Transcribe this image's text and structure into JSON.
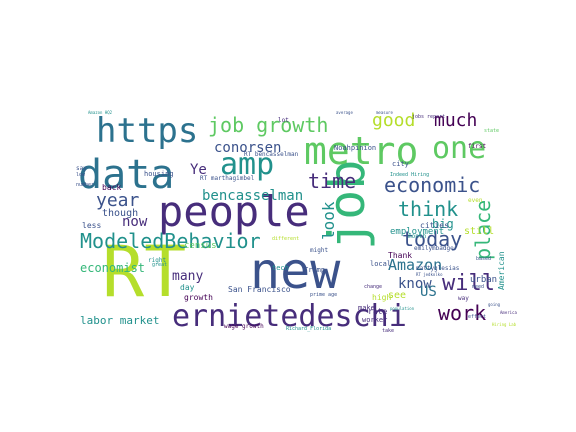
{
  "palette": [
    "#440154",
    "#3b528b",
    "#21918c",
    "#5ec962",
    "#fde725",
    "#2c728e",
    "#35b779",
    "#472d7b",
    "#b5de2b",
    "#26828e"
  ],
  "words": [
    {
      "text": "RT",
      "weight": 1.0,
      "color": "#b5de2b"
    },
    {
      "text": "new",
      "weight": 0.95,
      "color": "#3b528b"
    },
    {
      "text": "people",
      "weight": 0.86,
      "color": "#472d7b"
    },
    {
      "text": "job",
      "weight": 0.88,
      "color": "#35b779",
      "rotate": true
    },
    {
      "text": "data",
      "weight": 0.84,
      "color": "#2c728e"
    },
    {
      "text": "metro",
      "weight": 0.76,
      "color": "#5ec962"
    },
    {
      "text": "https",
      "weight": 0.7,
      "color": "#2c728e"
    },
    {
      "text": "ernietedeschi",
      "weight": 0.68,
      "color": "#472d7b"
    },
    {
      "text": "amp",
      "weight": 0.68,
      "color": "#21918c"
    },
    {
      "text": "one",
      "weight": 0.66,
      "color": "#5ec962"
    },
    {
      "text": "ModeledBehavior",
      "weight": 0.52,
      "color": "#21918c"
    },
    {
      "text": "job growth",
      "weight": 0.52,
      "color": "#5ec962"
    },
    {
      "text": "economic",
      "weight": 0.5,
      "color": "#3b528b"
    },
    {
      "text": "will",
      "weight": 0.5,
      "color": "#472d7b"
    },
    {
      "text": "today",
      "weight": 0.46,
      "color": "#3b528b"
    },
    {
      "text": "work",
      "weight": 0.46,
      "color": "#440154"
    },
    {
      "text": "time",
      "weight": 0.46,
      "color": "#472d7b"
    },
    {
      "text": "think",
      "weight": 0.44,
      "color": "#21918c"
    },
    {
      "text": "good",
      "weight": 0.44,
      "color": "#b5de2b"
    },
    {
      "text": "much",
      "weight": 0.44,
      "color": "#440154"
    },
    {
      "text": "year",
      "weight": 0.4,
      "color": "#3b528b"
    },
    {
      "text": "place",
      "weight": 0.4,
      "color": "#35b779",
      "rotate": true
    },
    {
      "text": "look",
      "weight": 0.36,
      "color": "#21918c",
      "rotate": true
    },
    {
      "text": "Amazon",
      "weight": 0.32,
      "color": "#2c728e"
    },
    {
      "text": "now",
      "weight": 0.32,
      "color": "#472d7b"
    },
    {
      "text": "bencasselman",
      "weight": 0.3,
      "color": "#21918c"
    },
    {
      "text": "conorsen",
      "weight": 0.3,
      "color": "#3b528b"
    },
    {
      "text": "Ye",
      "weight": 0.3,
      "color": "#472d7b"
    },
    {
      "text": "know",
      "weight": 0.28,
      "color": "#3b528b"
    },
    {
      "text": "US",
      "weight": 0.28,
      "color": "#2c728e"
    },
    {
      "text": "economist",
      "weight": 0.26,
      "color": "#35b779"
    },
    {
      "text": "many",
      "weight": 0.26,
      "color": "#472d7b"
    },
    {
      "text": "labor market",
      "weight": 0.22,
      "color": "#21918c"
    },
    {
      "text": "big",
      "weight": 0.22,
      "color": "#21918c"
    },
    {
      "text": "though",
      "weight": 0.2,
      "color": "#3b528b"
    },
    {
      "text": "cities",
      "weight": 0.18,
      "color": "#3b528b"
    },
    {
      "text": "still",
      "weight": 0.18,
      "color": "#b5de2b"
    },
    {
      "text": "employment",
      "weight": 0.18,
      "color": "#21918c"
    },
    {
      "text": "urban",
      "weight": 0.18,
      "color": "#3b528b"
    },
    {
      "text": "census",
      "weight": 0.18,
      "color": "#5ec962"
    },
    {
      "text": "see",
      "weight": 0.18,
      "color": "#b5de2b"
    },
    {
      "text": "less",
      "weight": 0.16,
      "color": "#3b528b"
    },
    {
      "text": "growth",
      "weight": 0.16,
      "color": "#440154"
    },
    {
      "text": "San Francisco",
      "weight": 0.14,
      "color": "#3b528b"
    },
    {
      "text": "high",
      "weight": 0.14,
      "color": "#b5de2b"
    },
    {
      "text": "city",
      "weight": 0.14,
      "color": "#3b528b"
    },
    {
      "text": "back",
      "weight": 0.14,
      "color": "#440154"
    },
    {
      "text": "day",
      "weight": 0.14,
      "color": "#21918c"
    },
    {
      "text": "rate",
      "weight": 0.14,
      "color": "#472d7b"
    },
    {
      "text": "American",
      "weight": 0.14,
      "color": "#21918c",
      "rotate": true
    },
    {
      "text": "Thank",
      "weight": 0.14,
      "color": "#440154"
    },
    {
      "text": "worker",
      "weight": 0.13,
      "color": "#472d7b"
    },
    {
      "text": "mattyglesias",
      "weight": 0.13,
      "color": "#3b528b"
    },
    {
      "text": "emilymbadger",
      "weight": 0.13,
      "color": "#3b528b"
    },
    {
      "text": "Noahpinion",
      "weight": 0.13,
      "color": "#3b528b"
    },
    {
      "text": "make",
      "weight": 0.13,
      "color": "#472d7b"
    },
    {
      "text": "local",
      "weight": 0.13,
      "color": "#3b528b"
    },
    {
      "text": "way",
      "weight": 0.12,
      "color": "#472d7b"
    },
    {
      "text": "tech",
      "weight": 0.12,
      "color": "#21918c"
    },
    {
      "text": "Trump",
      "weight": 0.12,
      "color": "#3b528b"
    },
    {
      "text": "housing",
      "weight": 0.12,
      "color": "#3b528b"
    },
    {
      "text": "might",
      "weight": 0.12,
      "color": "#3b528b"
    },
    {
      "text": "right",
      "weight": 0.12,
      "color": "#21918c"
    },
    {
      "text": "lot",
      "weight": 0.12,
      "color": "#472d7b"
    },
    {
      "text": "first",
      "weight": 0.12,
      "color": "#440154"
    },
    {
      "text": "even",
      "weight": 0.12,
      "color": "#b5de2b"
    },
    {
      "text": "say",
      "weight": 0.1,
      "color": "#3b528b"
    },
    {
      "text": "month",
      "weight": 0.1,
      "color": "#21918c"
    },
    {
      "text": "need",
      "weight": 0.1,
      "color": "#3b528b"
    },
    {
      "text": "state",
      "weight": 0.1,
      "color": "#5ec962"
    },
    {
      "text": "based",
      "weight": 0.1,
      "color": "#3b528b"
    },
    {
      "text": "low",
      "weight": 0.1,
      "color": "#3b528b"
    },
    {
      "text": "take",
      "weight": 0.1,
      "color": "#472d7b"
    },
    {
      "text": "effect",
      "weight": 0.1,
      "color": "#3b528b"
    },
    {
      "text": "RT marthagimbel",
      "weight": 0.1,
      "color": "#3b528b"
    },
    {
      "text": "RT bencasselman",
      "weight": 0.1,
      "color": "#3b528b"
    },
    {
      "text": "Indeed Hiring",
      "weight": 0.09,
      "color": "#21918c"
    },
    {
      "text": "jobs report",
      "weight": 0.09,
      "color": "#472d7b"
    },
    {
      "text": "wage growth",
      "weight": 0.09,
      "color": "#440154"
    },
    {
      "text": "Richard_Florida",
      "weight": 0.09,
      "color": "#21918c"
    },
    {
      "text": "Amazon HQ2",
      "weight": 0.09,
      "color": "#21918c"
    },
    {
      "text": "different",
      "weight": 0.09,
      "color": "#b5de2b"
    },
    {
      "text": "number",
      "weight": 0.08,
      "color": "#3b528b"
    },
    {
      "text": "measure",
      "weight": 0.08,
      "color": "#3b528b"
    },
    {
      "text": "prime age",
      "weight": 0.08,
      "color": "#3b528b"
    },
    {
      "text": "population",
      "weight": 0.08,
      "color": "#21918c"
    },
    {
      "text": "change",
      "weight": 0.08,
      "color": "#472d7b"
    },
    {
      "text": "average",
      "weight": 0.08,
      "color": "#3b528b"
    },
    {
      "text": "going",
      "weight": 0.08,
      "color": "#3b528b"
    },
    {
      "text": "Hiring Lab",
      "weight": 0.08,
      "color": "#b5de2b"
    },
    {
      "text": "America",
      "weight": 0.08,
      "color": "#472d7b"
    },
    {
      "text": "RT jedkolko",
      "weight": 0.08,
      "color": "#3b528b"
    },
    {
      "text": "great",
      "weight": 0.07,
      "color": "#21918c"
    }
  ]
}
